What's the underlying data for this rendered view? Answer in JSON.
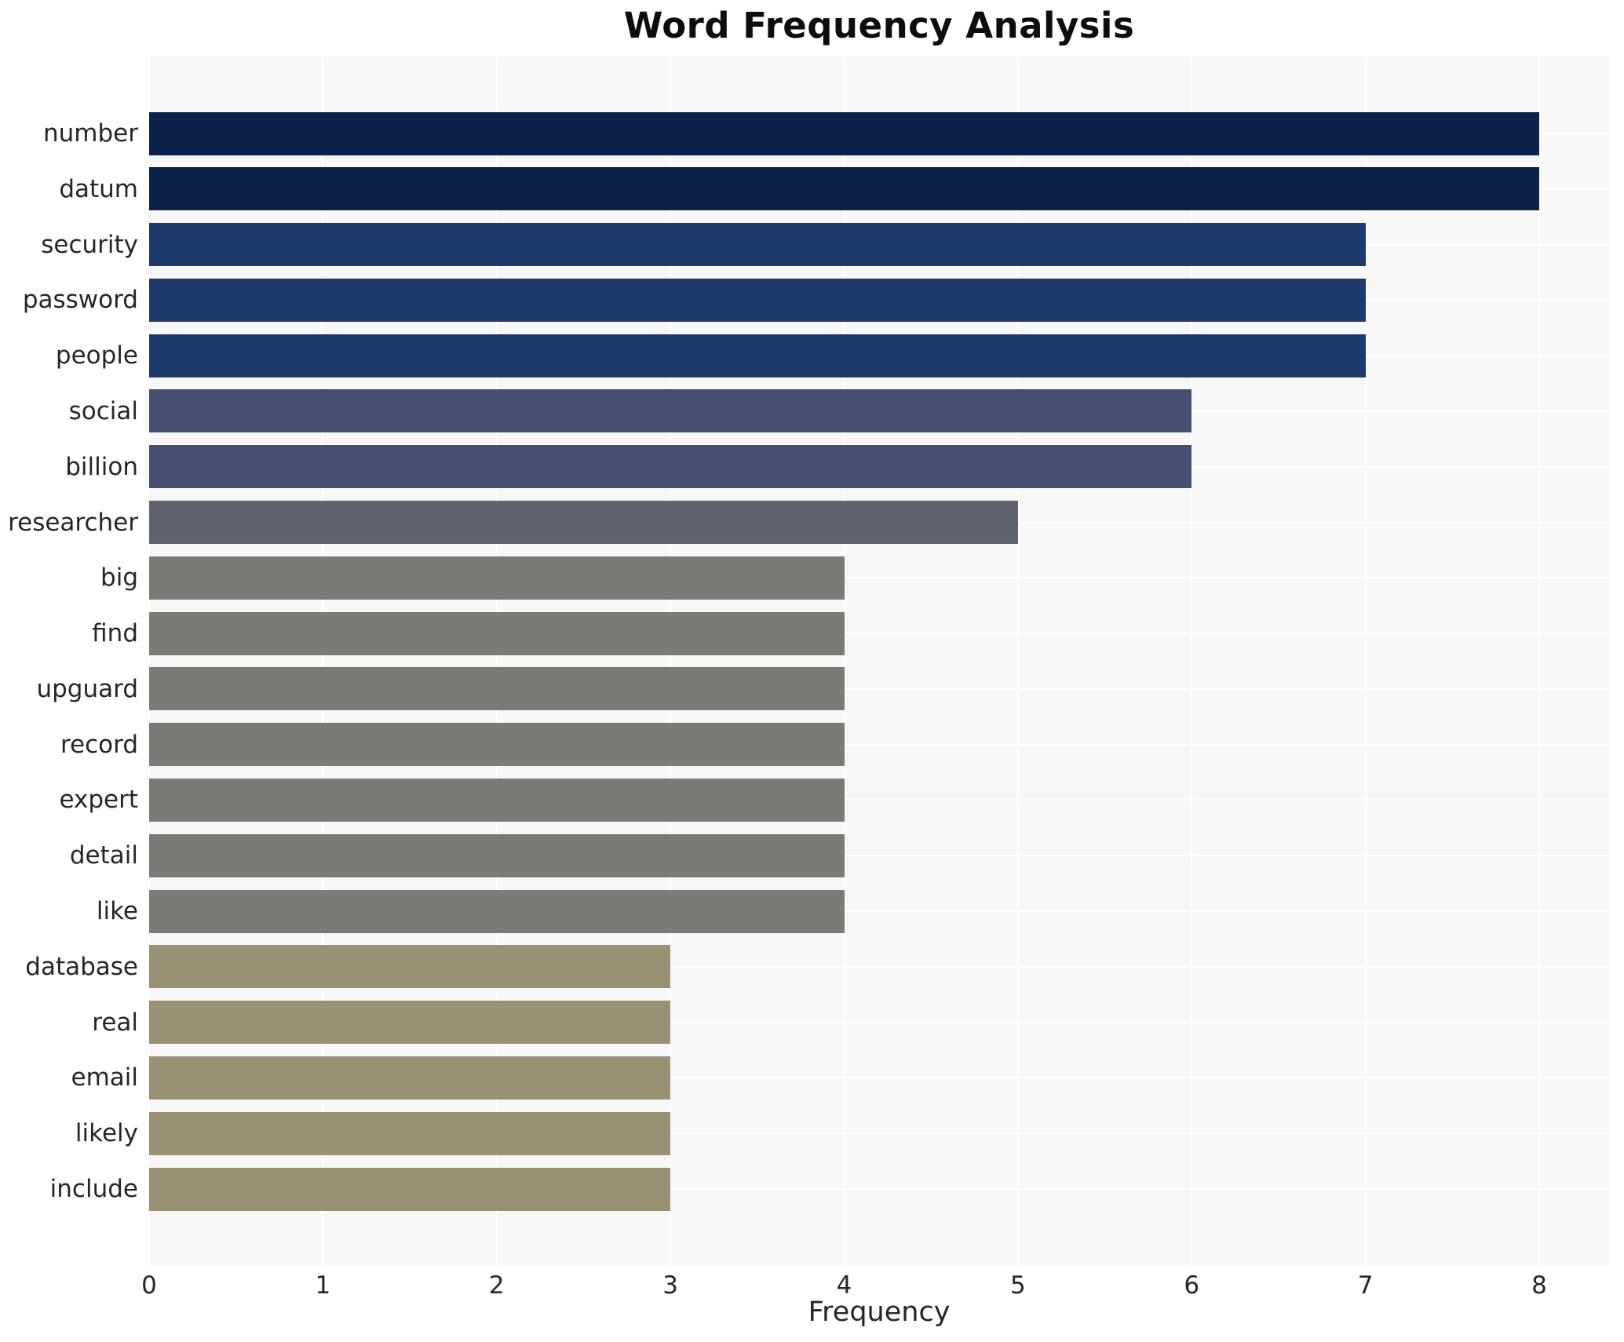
{
  "chart_data": {
    "type": "bar",
    "orientation": "horizontal",
    "title": "Word Frequency Analysis",
    "xlabel": "Frequency",
    "ylabel": "",
    "categories": [
      "number",
      "datum",
      "security",
      "password",
      "people",
      "social",
      "billion",
      "researcher",
      "big",
      "find",
      "upguard",
      "record",
      "expert",
      "detail",
      "like",
      "database",
      "real",
      "email",
      "likely",
      "include"
    ],
    "values": [
      8,
      8,
      7,
      7,
      7,
      6,
      6,
      5,
      4,
      4,
      4,
      4,
      4,
      4,
      4,
      3,
      3,
      3,
      3,
      3
    ],
    "bar_colors": [
      "#0a2149",
      "#0a2149",
      "#1e3a6b",
      "#1e3a6b",
      "#1e3a6b",
      "#454f74",
      "#454f74",
      "#5f6370",
      "#7b7a74",
      "#7b7a74",
      "#7b7a74",
      "#7b7a74",
      "#7b7a74",
      "#7b7a74",
      "#7b7a74",
      "#9a9172",
      "#9a9172",
      "#9a9172",
      "#9a9172",
      "#9a9172"
    ],
    "xlim": [
      0,
      8
    ],
    "xticks": [
      "0",
      "1",
      "2",
      "3",
      "4",
      "5",
      "6",
      "7",
      "8"
    ],
    "grid": true,
    "legend": false,
    "colors": {
      "plot_background": "#f7f7f7",
      "figure_background": "#ffffff",
      "gridline": "#ffffff",
      "text": "#262626",
      "title_text": "#0d0d0d"
    }
  }
}
